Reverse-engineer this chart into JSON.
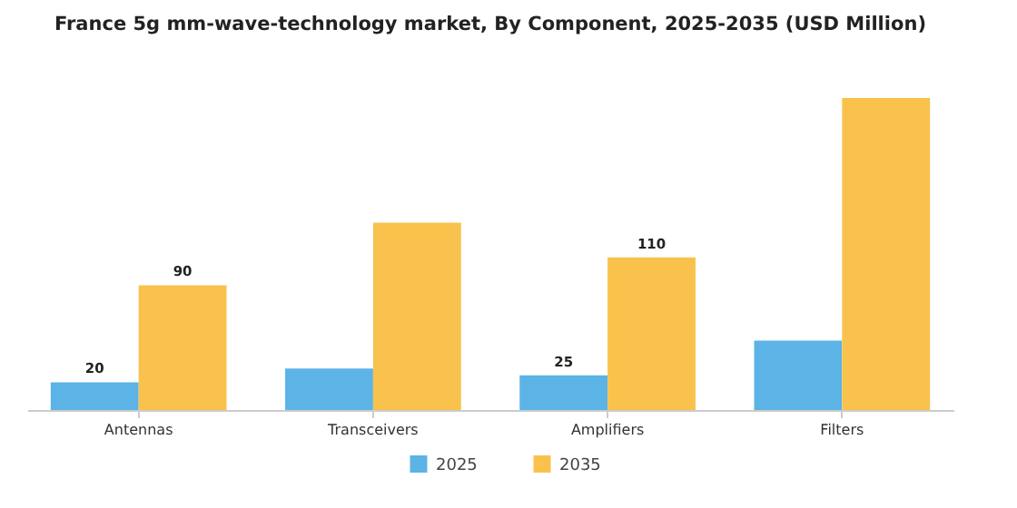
{
  "chart_data": {
    "type": "bar",
    "title": "France 5g mm-wave-technology market, By Component, 2025-2035 (USD Million)",
    "categories": [
      "Antennas",
      "Transceivers",
      "Amplifiers",
      "Filters"
    ],
    "series": [
      {
        "name": "2025",
        "color": "#5cb3e6",
        "values": [
          20,
          30,
          25,
          50
        ],
        "value_labels": [
          "20",
          null,
          "25",
          null
        ]
      },
      {
        "name": "2035",
        "color": "#f8c24c",
        "values": [
          90,
          135,
          110,
          225
        ],
        "value_labels": [
          "90",
          null,
          "110",
          null
        ]
      }
    ],
    "legend": "bottom",
    "grid": false
  }
}
